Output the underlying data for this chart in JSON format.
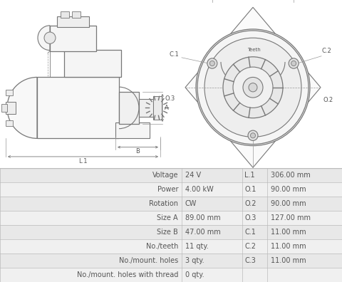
{
  "table_rows": [
    [
      "Voltage",
      "24 V",
      "L.1",
      "306.00 mm"
    ],
    [
      "Power",
      "4.00 kW",
      "O.1",
      "90.00 mm"
    ],
    [
      "Rotation",
      "CW",
      "O.2",
      "90.00 mm"
    ],
    [
      "Size A",
      "89.00 mm",
      "O.3",
      "127.00 mm"
    ],
    [
      "Size B",
      "47.00 mm",
      "C.1",
      "11.00 mm"
    ],
    [
      "No./teeth",
      "11 qty.",
      "C.2",
      "11.00 mm"
    ],
    [
      "No./mount. holes",
      "3 qty.",
      "C.3",
      "11.00 mm"
    ],
    [
      "No./mount. holes with thread",
      "0 qty.",
      "",
      ""
    ]
  ],
  "table_border": "#bbbbbb",
  "text_color": "#555555",
  "line_color": "#999999",
  "dark_line": "#777777"
}
